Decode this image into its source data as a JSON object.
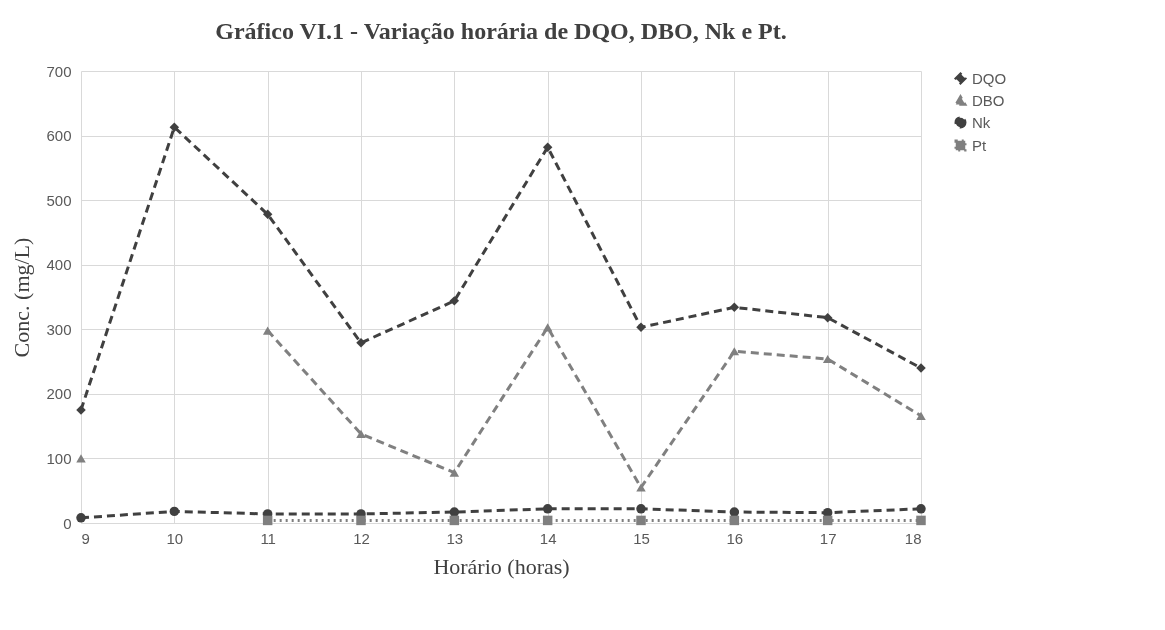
{
  "chart_data": {
    "type": "line",
    "title": "Gráfico VI.1 - Variação horária de DQO, DBO, Nk e Pt.",
    "xlabel": "Horário (horas)",
    "ylabel": "Conc. (mg/L)",
    "x": [
      9,
      10,
      11,
      12,
      13,
      14,
      15,
      16,
      17,
      18
    ],
    "series": [
      {
        "name": "DQO",
        "color": "#404040",
        "marker": "diamond",
        "line_style": "dashed",
        "values": [
          175,
          613,
          478,
          279,
          344,
          582,
          303,
          334,
          318,
          240
        ]
      },
      {
        "name": "DBO",
        "color": "#808080",
        "marker": "triangle",
        "line_style": "dashed",
        "values": [
          100,
          null,
          298,
          138,
          78,
          303,
          55,
          266,
          254,
          166
        ]
      },
      {
        "name": "Nk",
        "color": "#404040",
        "marker": "circle",
        "line_style": "dashed",
        "values": [
          8,
          18,
          14,
          14,
          17,
          22,
          22,
          17,
          16,
          22
        ]
      },
      {
        "name": "Pt",
        "color": "#7f7f7f",
        "marker": "square",
        "line_style": "dotted",
        "values": [
          null,
          null,
          4,
          4,
          4,
          4,
          4,
          4,
          4,
          4
        ]
      }
    ],
    "xlim": [
      9,
      18
    ],
    "xticks": [
      9,
      10,
      11,
      12,
      13,
      14,
      15,
      16,
      17,
      18
    ],
    "ylim": [
      0,
      700
    ],
    "yticks": [
      0,
      100,
      200,
      300,
      400,
      500,
      600,
      700
    ],
    "grid": true,
    "legend": "right"
  }
}
